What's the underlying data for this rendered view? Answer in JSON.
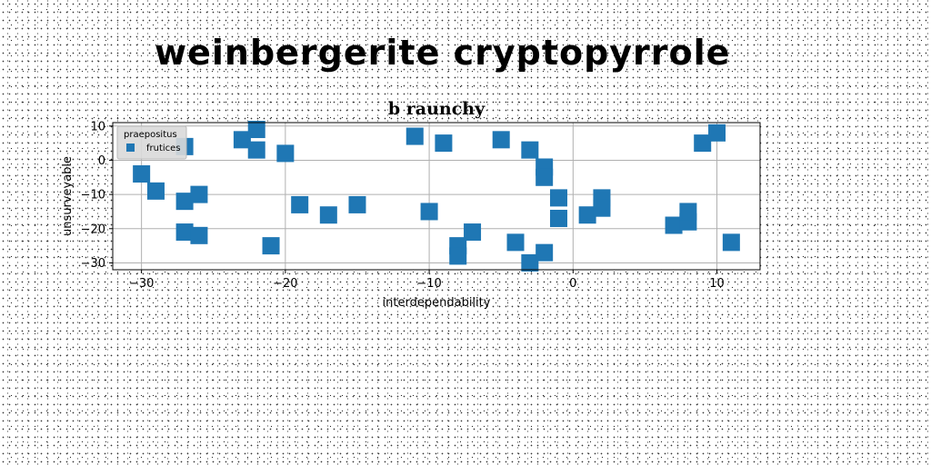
{
  "headline": "weinbergerite cryptopyrrole",
  "chart_data": {
    "type": "scatter",
    "title": "b raunchy",
    "xlabel": "interdependability",
    "ylabel": "unsurveyable",
    "xlim": [
      -32,
      13
    ],
    "ylim": [
      -32,
      11
    ],
    "xticks": [
      -30,
      -20,
      -10,
      0,
      10
    ],
    "yticks": [
      -30,
      -20,
      -10,
      0,
      10
    ],
    "grid": true,
    "legend": {
      "title": "praepositus",
      "placement": "top-left"
    },
    "series": [
      {
        "name": "frutices",
        "color": "#1f77b4",
        "marker": "square",
        "points": [
          [
            -30,
            -4
          ],
          [
            -29,
            -9
          ],
          [
            -27,
            4
          ],
          [
            -27,
            -12
          ],
          [
            -26,
            -10
          ],
          [
            -27,
            -21
          ],
          [
            -26,
            -22
          ],
          [
            -23,
            6
          ],
          [
            -22,
            9
          ],
          [
            -22,
            3
          ],
          [
            -21,
            -25
          ],
          [
            -20,
            2
          ],
          [
            -19,
            -13
          ],
          [
            -17,
            -16
          ],
          [
            -15,
            -13
          ],
          [
            -11,
            7
          ],
          [
            -10,
            -15
          ],
          [
            -9,
            5
          ],
          [
            -8,
            -25
          ],
          [
            -8,
            -28
          ],
          [
            -7,
            -21
          ],
          [
            -5,
            6
          ],
          [
            -4,
            -24
          ],
          [
            -3,
            3
          ],
          [
            -3,
            -30
          ],
          [
            -2,
            -2
          ],
          [
            -2,
            -5
          ],
          [
            -2,
            -27
          ],
          [
            -1,
            -11
          ],
          [
            -1,
            -17
          ],
          [
            1,
            -16
          ],
          [
            2,
            -11
          ],
          [
            2,
            -14
          ],
          [
            7,
            -19
          ],
          [
            8,
            -18
          ],
          [
            8,
            -15
          ],
          [
            9,
            5
          ],
          [
            10,
            8
          ],
          [
            11,
            -24
          ]
        ]
      }
    ]
  }
}
